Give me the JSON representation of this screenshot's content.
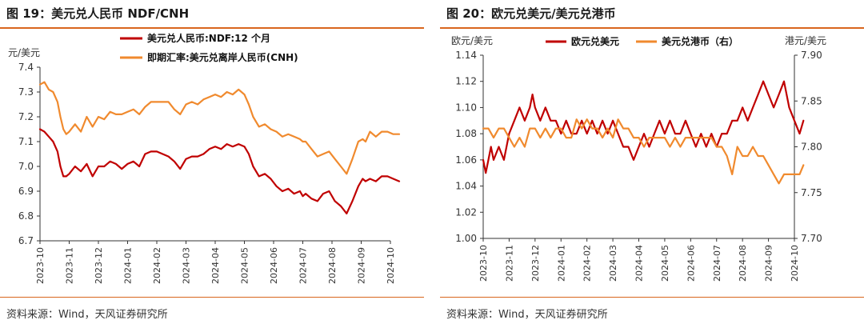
{
  "figures": [
    {
      "title": "图 19：美元兑人民币 NDF/CNH",
      "source": "资料来源：Wind，天风证券研究所"
    },
    {
      "title": "图 20：欧元兑美元/美元兑港币",
      "source": "资料来源：Wind，天风证券研究所"
    }
  ],
  "chart_data": [
    {
      "type": "line",
      "title": "图 19：美元兑人民币 NDF/CNH",
      "ylabel": "元/美元",
      "ylim": [
        6.7,
        7.4
      ],
      "yticks": [
        "7.4",
        "7.3",
        "7.2",
        "7.1",
        "7.0",
        "6.9",
        "6.8",
        "6.7"
      ],
      "categories": [
        "2023-10",
        "2023-11",
        "2023-12",
        "2024-01",
        "2024-02",
        "2024-03",
        "2024-04",
        "2024-05",
        "2024-06",
        "2024-07",
        "2024-08",
        "2024-09",
        "2024-10"
      ],
      "legend_position": "top-left",
      "grid": false,
      "series": [
        {
          "name": "美元兑人民币:NDF:12 个月",
          "color": "#c00000",
          "x": [
            0,
            0.15,
            0.3,
            0.45,
            0.6,
            0.7,
            0.8,
            0.9,
            1.0,
            1.2,
            1.4,
            1.6,
            1.8,
            2.0,
            2.2,
            2.4,
            2.6,
            2.8,
            3.0,
            3.2,
            3.4,
            3.6,
            3.8,
            4.0,
            4.2,
            4.4,
            4.6,
            4.8,
            5.0,
            5.2,
            5.4,
            5.6,
            5.8,
            6.0,
            6.2,
            6.4,
            6.6,
            6.8,
            7.0,
            7.15,
            7.3,
            7.5,
            7.7,
            7.9,
            8.1,
            8.3,
            8.5,
            8.7,
            8.9,
            9.0,
            9.1,
            9.3,
            9.5,
            9.7,
            9.9,
            10.1,
            10.3,
            10.5,
            10.7,
            10.9,
            11.05,
            11.15,
            11.3,
            11.5,
            11.7,
            11.9,
            12.1,
            12.3
          ],
          "y": [
            7.15,
            7.14,
            7.12,
            7.1,
            7.06,
            7.0,
            6.96,
            6.96,
            6.97,
            7.0,
            6.98,
            7.01,
            6.96,
            7.0,
            7.0,
            7.02,
            7.01,
            6.99,
            7.01,
            7.02,
            7.0,
            7.05,
            7.06,
            7.06,
            7.05,
            7.04,
            7.02,
            6.99,
            7.03,
            7.04,
            7.04,
            7.05,
            7.07,
            7.08,
            7.07,
            7.09,
            7.08,
            7.09,
            7.08,
            7.05,
            7.0,
            6.96,
            6.97,
            6.95,
            6.92,
            6.9,
            6.91,
            6.89,
            6.9,
            6.88,
            6.89,
            6.87,
            6.86,
            6.89,
            6.9,
            6.86,
            6.84,
            6.81,
            6.86,
            6.92,
            6.95,
            6.94,
            6.95,
            6.94,
            6.96,
            6.96,
            6.95,
            6.94
          ]
        },
        {
          "name": "即期汇率:美元兑离岸人民币(CNH)",
          "color": "#f08a2e",
          "x": [
            0,
            0.15,
            0.3,
            0.45,
            0.6,
            0.7,
            0.8,
            0.9,
            1.0,
            1.2,
            1.4,
            1.6,
            1.8,
            2.0,
            2.2,
            2.4,
            2.6,
            2.8,
            3.0,
            3.2,
            3.4,
            3.6,
            3.8,
            4.0,
            4.2,
            4.4,
            4.6,
            4.8,
            5.0,
            5.2,
            5.4,
            5.6,
            5.8,
            6.0,
            6.2,
            6.4,
            6.6,
            6.8,
            7.0,
            7.15,
            7.3,
            7.5,
            7.7,
            7.9,
            8.1,
            8.3,
            8.5,
            8.7,
            8.9,
            9.0,
            9.1,
            9.3,
            9.5,
            9.7,
            9.9,
            10.1,
            10.3,
            10.5,
            10.7,
            10.9,
            11.05,
            11.15,
            11.3,
            11.5,
            11.7,
            11.9,
            12.1,
            12.3
          ],
          "y": [
            7.33,
            7.34,
            7.31,
            7.3,
            7.26,
            7.2,
            7.15,
            7.13,
            7.14,
            7.17,
            7.14,
            7.2,
            7.16,
            7.2,
            7.19,
            7.22,
            7.21,
            7.21,
            7.22,
            7.23,
            7.21,
            7.24,
            7.26,
            7.26,
            7.26,
            7.26,
            7.23,
            7.21,
            7.25,
            7.26,
            7.25,
            7.27,
            7.28,
            7.29,
            7.28,
            7.3,
            7.29,
            7.31,
            7.29,
            7.25,
            7.2,
            7.16,
            7.17,
            7.15,
            7.14,
            7.12,
            7.13,
            7.12,
            7.11,
            7.1,
            7.1,
            7.07,
            7.04,
            7.05,
            7.06,
            7.03,
            7.0,
            6.97,
            7.03,
            7.1,
            7.11,
            7.1,
            7.14,
            7.12,
            7.14,
            7.14,
            7.13,
            7.13
          ]
        }
      ]
    },
    {
      "type": "line",
      "title": "图 20：欧元兑美元/美元兑港币",
      "ylabel": "欧元/美元",
      "y2label": "港元/美元",
      "ylim": [
        1.0,
        1.14
      ],
      "y2lim": [
        7.7,
        7.9
      ],
      "yticks": [
        "1.14",
        "1.12",
        "1.10",
        "1.08",
        "1.06",
        "1.04",
        "1.02",
        "1.00"
      ],
      "y2ticks": [
        "7.90",
        "7.85",
        "7.80",
        "7.75",
        "7.70"
      ],
      "categories": [
        "2023-10",
        "2023-11",
        "2023-12",
        "2024-01",
        "2024-02",
        "2024-03",
        "2024-04",
        "2024-05",
        "2024-06",
        "2024-07",
        "2024-08",
        "2024-09",
        "2024-10"
      ],
      "legend_position": "top",
      "grid": false,
      "series": [
        {
          "name": "欧元兑美元",
          "axis": "left",
          "color": "#c00000",
          "x": [
            0,
            0.1,
            0.2,
            0.3,
            0.4,
            0.6,
            0.8,
            1.0,
            1.2,
            1.4,
            1.6,
            1.8,
            1.9,
            2.0,
            2.2,
            2.4,
            2.6,
            2.8,
            3.0,
            3.2,
            3.4,
            3.6,
            3.8,
            4.0,
            4.2,
            4.4,
            4.6,
            4.8,
            5.0,
            5.2,
            5.4,
            5.6,
            5.8,
            6.0,
            6.2,
            6.4,
            6.6,
            6.8,
            7.0,
            7.2,
            7.4,
            7.6,
            7.8,
            8.0,
            8.2,
            8.4,
            8.6,
            8.8,
            9.0,
            9.2,
            9.4,
            9.6,
            9.8,
            10.0,
            10.2,
            10.4,
            10.6,
            10.8,
            11.0,
            11.2,
            11.4,
            11.6,
            11.8,
            12.0,
            12.2,
            12.35
          ],
          "y": [
            1.06,
            1.05,
            1.06,
            1.07,
            1.06,
            1.07,
            1.06,
            1.08,
            1.09,
            1.1,
            1.09,
            1.1,
            1.11,
            1.1,
            1.09,
            1.1,
            1.09,
            1.09,
            1.08,
            1.09,
            1.08,
            1.08,
            1.09,
            1.08,
            1.09,
            1.08,
            1.09,
            1.08,
            1.09,
            1.08,
            1.07,
            1.07,
            1.06,
            1.07,
            1.08,
            1.07,
            1.08,
            1.09,
            1.08,
            1.09,
            1.08,
            1.08,
            1.09,
            1.08,
            1.07,
            1.08,
            1.07,
            1.08,
            1.07,
            1.08,
            1.08,
            1.09,
            1.09,
            1.1,
            1.09,
            1.1,
            1.11,
            1.12,
            1.11,
            1.1,
            1.11,
            1.12,
            1.1,
            1.09,
            1.08,
            1.09
          ]
        },
        {
          "name": "美元兑港币（右）",
          "axis": "right",
          "color": "#f08a2e",
          "x": [
            0,
            0.2,
            0.4,
            0.6,
            0.8,
            1.0,
            1.2,
            1.4,
            1.6,
            1.8,
            2.0,
            2.2,
            2.4,
            2.6,
            2.8,
            3.0,
            3.2,
            3.4,
            3.6,
            3.8,
            4.0,
            4.2,
            4.4,
            4.6,
            4.8,
            5.0,
            5.2,
            5.4,
            5.6,
            5.8,
            6.0,
            6.2,
            6.4,
            6.6,
            6.8,
            7.0,
            7.2,
            7.4,
            7.6,
            7.8,
            8.0,
            8.2,
            8.4,
            8.6,
            8.8,
            9.0,
            9.2,
            9.4,
            9.6,
            9.8,
            10.0,
            10.2,
            10.4,
            10.6,
            10.8,
            11.0,
            11.2,
            11.4,
            11.6,
            11.8,
            12.0,
            12.2,
            12.35
          ],
          "y": [
            7.82,
            7.82,
            7.81,
            7.82,
            7.82,
            7.81,
            7.8,
            7.81,
            7.8,
            7.82,
            7.82,
            7.81,
            7.82,
            7.81,
            7.82,
            7.82,
            7.81,
            7.81,
            7.83,
            7.82,
            7.83,
            7.82,
            7.82,
            7.81,
            7.82,
            7.81,
            7.83,
            7.82,
            7.82,
            7.81,
            7.81,
            7.8,
            7.81,
            7.81,
            7.81,
            7.81,
            7.8,
            7.81,
            7.8,
            7.81,
            7.81,
            7.81,
            7.81,
            7.81,
            7.81,
            7.8,
            7.8,
            7.79,
            7.77,
            7.8,
            7.79,
            7.79,
            7.8,
            7.79,
            7.79,
            7.78,
            7.77,
            7.76,
            7.77,
            7.77,
            7.77,
            7.77,
            7.78
          ]
        }
      ]
    }
  ]
}
